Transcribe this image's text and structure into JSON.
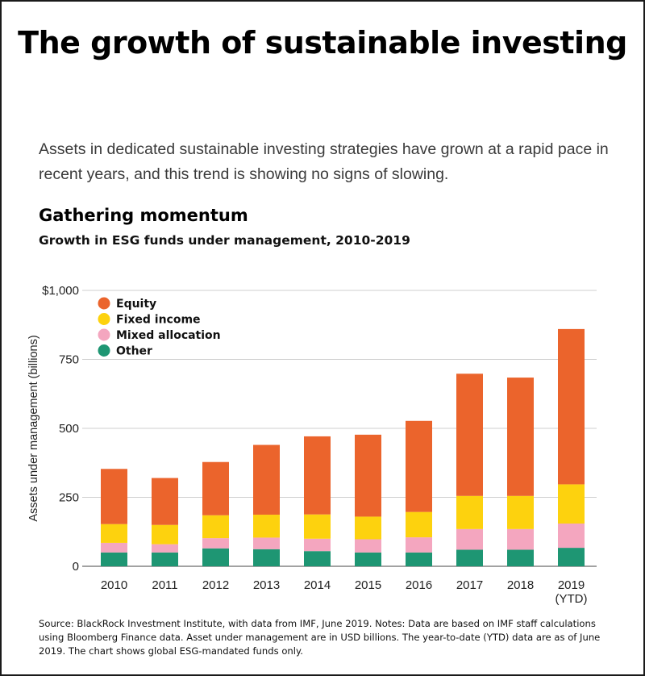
{
  "header": {
    "title": "The growth of sustainable investing",
    "intro": "Assets in dedicated sustainable investing strategies have grown at a rapid pace in recent years, and this trend is showing no signs of slowing.",
    "subhead": "Gathering momentum",
    "subtitle": "Growth in ESG funds under management, 2010-2019"
  },
  "chart_data": {
    "type": "bar",
    "stacked": true,
    "categories": [
      "2010",
      "2011",
      "2012",
      "2013",
      "2014",
      "2015",
      "2016",
      "2017",
      "2018",
      "2019"
    ],
    "category_sublabels": [
      "",
      "",
      "",
      "",
      "",
      "",
      "",
      "",
      "",
      "(YTD)"
    ],
    "series": [
      {
        "name": "Other",
        "color": "#1e9673",
        "values": [
          50,
          50,
          65,
          62,
          55,
          50,
          50,
          60,
          60,
          67
        ]
      },
      {
        "name": "Mixed allocation",
        "color": "#f4a6bf",
        "values": [
          35,
          30,
          37,
          42,
          45,
          48,
          55,
          75,
          75,
          88
        ]
      },
      {
        "name": "Fixed income",
        "color": "#fdd20e",
        "values": [
          68,
          70,
          83,
          83,
          88,
          82,
          92,
          120,
          120,
          142
        ]
      },
      {
        "name": "Equity",
        "color": "#eb642c",
        "values": [
          200,
          170,
          193,
          253,
          283,
          297,
          330,
          443,
          429,
          563
        ]
      }
    ],
    "legend_order": [
      "Equity",
      "Fixed income",
      "Mixed allocation",
      "Other"
    ],
    "legend_placement": "top-left",
    "ylabel": "Assets under management (billions)",
    "ylim": [
      0,
      1000
    ],
    "yticks": [
      0,
      250,
      500,
      750,
      1000
    ],
    "ytick_labels": [
      "0",
      "250",
      "500",
      "750",
      "$1,000"
    ],
    "grid": true
  },
  "footnote": "Source: BlackRock Investment Institute, with data from IMF, June 2019. Notes: Data are based on IMF staff calculations using Bloomberg Finance data. Asset under management are in USD billions. The year-to-date (YTD) data are as of June 2019. The chart shows global ESG-mandated funds only."
}
